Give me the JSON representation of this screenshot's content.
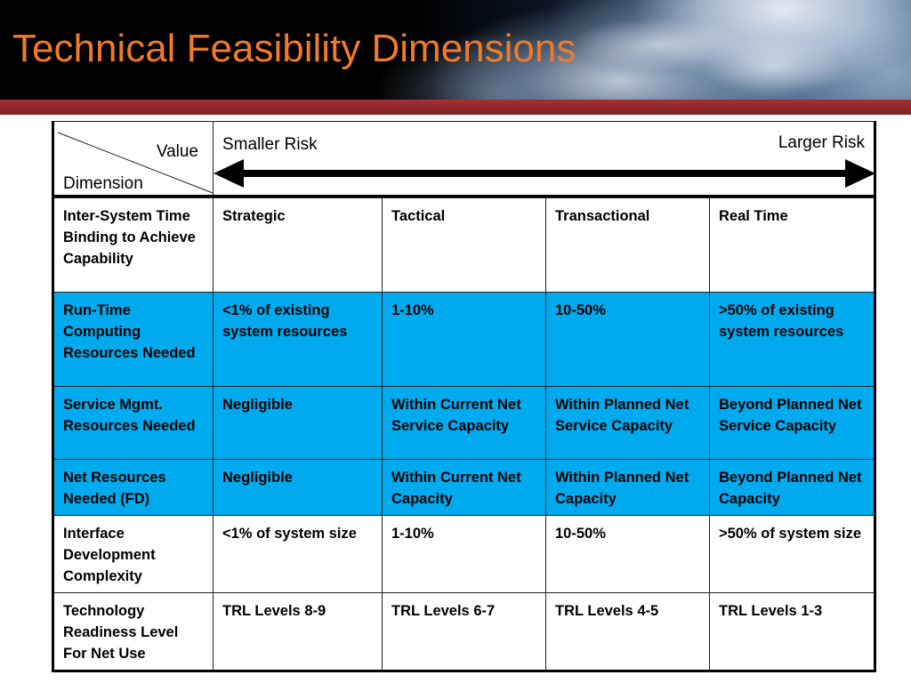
{
  "title": "Technical Feasibility Dimensions",
  "header": {
    "value_label": "Value",
    "dimension_label": "Dimension",
    "smaller_risk": "Smaller Risk",
    "larger_risk": "Larger Risk"
  },
  "colors": {
    "title": "#f07a2a",
    "band": "#8b2528",
    "highlight_row": "#00aaee"
  },
  "rows": [
    {
      "dimension": "Inter-System Time Binding to Achieve Capability",
      "c1": "Strategic",
      "c2": "Tactical",
      "c3": "Transactional",
      "c4": "Real Time",
      "highlight": false
    },
    {
      "dimension": "Run-Time Computing Resources Needed",
      "c1": "<1% of existing system resources",
      "c2": "1-10%",
      "c3": "10-50%",
      "c4": ">50% of existing system resources",
      "highlight": true
    },
    {
      "dimension": "Service Mgmt. Resources Needed",
      "c1": "Negligible",
      "c2": "Within Current Net Service Capacity",
      "c3": "Within Planned Net Service Capacity",
      "c4": "Beyond Planned Net Service Capacity",
      "highlight": true
    },
    {
      "dimension": "Net Resources Needed (FD)",
      "c1": "Negligible",
      "c2": "Within Current Net Capacity",
      "c3": "Within Planned Net Capacity",
      "c4": "Beyond Planned Net Capacity",
      "highlight": true
    },
    {
      "dimension": "Interface Development Complexity",
      "c1": "<1% of system size",
      "c2": "1-10%",
      "c3": "10-50%",
      "c4": ">50% of system size",
      "highlight": false
    },
    {
      "dimension": "Technology Readiness Level For Net Use",
      "c1": "TRL Levels 8-9",
      "c2": "TRL Levels 6-7",
      "c3": "TRL Levels 4-5",
      "c4": "TRL Levels 1-3",
      "highlight": false
    }
  ]
}
